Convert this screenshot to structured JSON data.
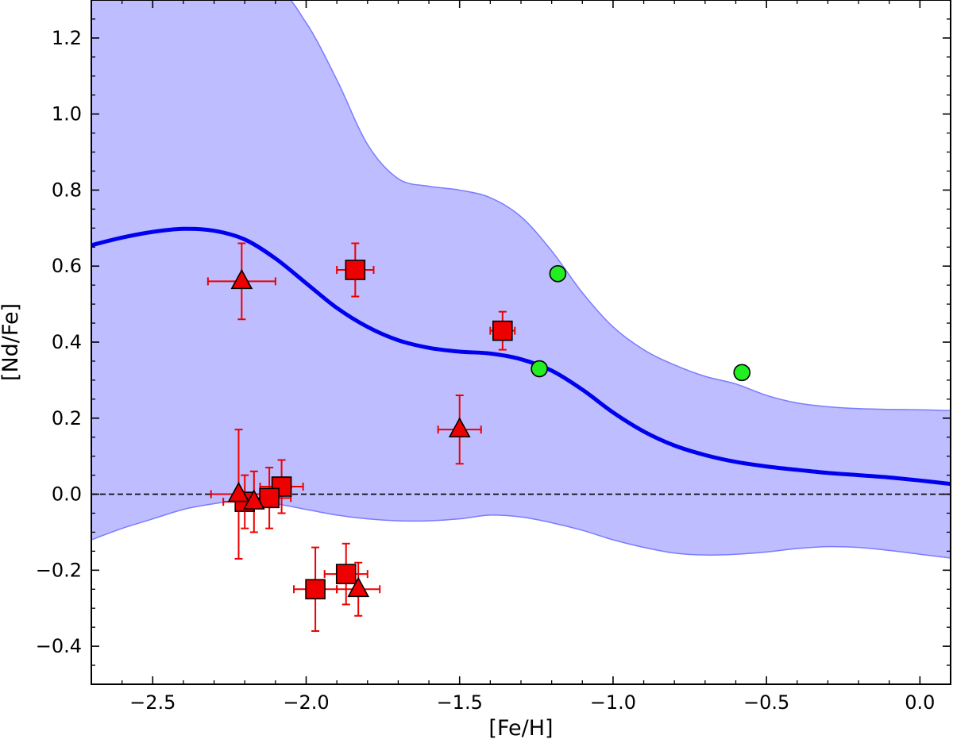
{
  "chart_data": {
    "type": "scatter",
    "title": "",
    "xlabel": "[Fe/H]",
    "ylabel": "[Nd/Fe]",
    "xlim": [
      -2.7,
      0.1
    ],
    "ylim": [
      -0.5,
      1.3
    ],
    "x_ticks": [
      -2.5,
      -2.0,
      -1.5,
      -1.0,
      -0.5,
      0.0
    ],
    "x_tick_labels": [
      "−2.5",
      "−2.0",
      "−1.5",
      "−1.0",
      "−0.5",
      "0.0"
    ],
    "y_ticks": [
      -0.4,
      -0.2,
      0.0,
      0.2,
      0.4,
      0.6,
      0.8,
      1.0,
      1.2
    ],
    "y_tick_labels": [
      "−0.4",
      "−0.2",
      "0.0",
      "0.2",
      "0.4",
      "0.6",
      "0.8",
      "1.0",
      "1.2"
    ],
    "x_minor_step": 0.1,
    "y_minor_step": 0.05,
    "grid": false,
    "reference_line": {
      "y": 0.0,
      "style": "dashed",
      "color": "#000000"
    },
    "band": {
      "color": "#7b7bff",
      "upper": [
        [
          -2.7,
          1.35
        ],
        [
          -2.5,
          1.35
        ],
        [
          -2.3,
          1.35
        ],
        [
          -2.1,
          1.33
        ],
        [
          -2.0,
          1.24
        ],
        [
          -1.9,
          1.09
        ],
        [
          -1.8,
          0.92
        ],
        [
          -1.7,
          0.83
        ],
        [
          -1.6,
          0.81
        ],
        [
          -1.5,
          0.8
        ],
        [
          -1.4,
          0.78
        ],
        [
          -1.3,
          0.73
        ],
        [
          -1.2,
          0.64
        ],
        [
          -1.1,
          0.53
        ],
        [
          -1.0,
          0.44
        ],
        [
          -0.9,
          0.38
        ],
        [
          -0.8,
          0.34
        ],
        [
          -0.7,
          0.31
        ],
        [
          -0.6,
          0.29
        ],
        [
          -0.5,
          0.26
        ],
        [
          -0.4,
          0.24
        ],
        [
          -0.3,
          0.23
        ],
        [
          -0.2,
          0.225
        ],
        [
          -0.1,
          0.223
        ],
        [
          0.0,
          0.222
        ],
        [
          0.1,
          0.22
        ]
      ],
      "lower": [
        [
          -2.7,
          -0.12
        ],
        [
          -2.6,
          -0.09
        ],
        [
          -2.5,
          -0.065
        ],
        [
          -2.4,
          -0.04
        ],
        [
          -2.3,
          -0.025
        ],
        [
          -2.2,
          -0.015
        ],
        [
          -2.1,
          -0.025
        ],
        [
          -2.0,
          -0.04
        ],
        [
          -1.9,
          -0.055
        ],
        [
          -1.8,
          -0.065
        ],
        [
          -1.7,
          -0.07
        ],
        [
          -1.6,
          -0.07
        ],
        [
          -1.5,
          -0.065
        ],
        [
          -1.4,
          -0.055
        ],
        [
          -1.3,
          -0.06
        ],
        [
          -1.2,
          -0.075
        ],
        [
          -1.1,
          -0.095
        ],
        [
          -1.0,
          -0.12
        ],
        [
          -0.9,
          -0.14
        ],
        [
          -0.8,
          -0.155
        ],
        [
          -0.7,
          -0.16
        ],
        [
          -0.6,
          -0.158
        ],
        [
          -0.5,
          -0.152
        ],
        [
          -0.4,
          -0.143
        ],
        [
          -0.3,
          -0.138
        ],
        [
          -0.2,
          -0.14
        ],
        [
          -0.1,
          -0.148
        ],
        [
          0.0,
          -0.158
        ],
        [
          0.1,
          -0.168
        ]
      ]
    },
    "curve": {
      "color": "#0000ee",
      "points": [
        [
          -2.7,
          0.655
        ],
        [
          -2.6,
          0.675
        ],
        [
          -2.5,
          0.69
        ],
        [
          -2.4,
          0.698
        ],
        [
          -2.3,
          0.693
        ],
        [
          -2.2,
          0.67
        ],
        [
          -2.1,
          0.62
        ],
        [
          -2.0,
          0.555
        ],
        [
          -1.9,
          0.49
        ],
        [
          -1.8,
          0.44
        ],
        [
          -1.7,
          0.405
        ],
        [
          -1.6,
          0.385
        ],
        [
          -1.5,
          0.375
        ],
        [
          -1.4,
          0.37
        ],
        [
          -1.3,
          0.355
        ],
        [
          -1.2,
          0.325
        ],
        [
          -1.1,
          0.275
        ],
        [
          -1.0,
          0.215
        ],
        [
          -0.9,
          0.165
        ],
        [
          -0.8,
          0.128
        ],
        [
          -0.7,
          0.103
        ],
        [
          -0.6,
          0.085
        ],
        [
          -0.5,
          0.073
        ],
        [
          -0.4,
          0.064
        ],
        [
          -0.3,
          0.056
        ],
        [
          -0.2,
          0.05
        ],
        [
          -0.1,
          0.044
        ],
        [
          0.0,
          0.036
        ],
        [
          0.1,
          0.027
        ]
      ]
    },
    "series": [
      {
        "marker": "square",
        "color": "#ee0000",
        "error_color": "#ee0000",
        "points": [
          {
            "x": -1.84,
            "y": 0.59,
            "xerr": 0.06,
            "yerr": 0.07
          },
          {
            "x": -1.36,
            "y": 0.43,
            "xerr": 0.04,
            "yerr": 0.05
          },
          {
            "x": -2.08,
            "y": 0.02,
            "xerr": 0.07,
            "yerr": 0.07
          },
          {
            "x": -2.12,
            "y": -0.01,
            "xerr": 0.07,
            "yerr": 0.08
          },
          {
            "x": -2.2,
            "y": -0.02,
            "xerr": 0.07,
            "yerr": 0.07
          },
          {
            "x": -1.97,
            "y": -0.25,
            "xerr": 0.07,
            "yerr": 0.11
          },
          {
            "x": -1.87,
            "y": -0.21,
            "xerr": 0.07,
            "yerr": 0.08
          }
        ]
      },
      {
        "marker": "triangle",
        "color": "#ee0000",
        "error_color": "#ee0000",
        "points": [
          {
            "x": -2.21,
            "y": 0.56,
            "xerr": 0.11,
            "yerr": 0.1
          },
          {
            "x": -1.5,
            "y": 0.17,
            "xerr": 0.07,
            "yerr": 0.09
          },
          {
            "x": -2.22,
            "y": 0.0,
            "xerr": 0.09,
            "yerr": 0.17
          },
          {
            "x": -2.17,
            "y": -0.02,
            "xerr": 0.05,
            "yerr": 0.08
          },
          {
            "x": -1.83,
            "y": -0.25,
            "xerr": 0.07,
            "yerr": 0.07
          }
        ]
      },
      {
        "marker": "circle",
        "color": "#22ee22",
        "points": [
          {
            "x": -1.18,
            "y": 0.58
          },
          {
            "x": -1.24,
            "y": 0.33
          },
          {
            "x": -0.58,
            "y": 0.32
          }
        ]
      }
    ]
  }
}
